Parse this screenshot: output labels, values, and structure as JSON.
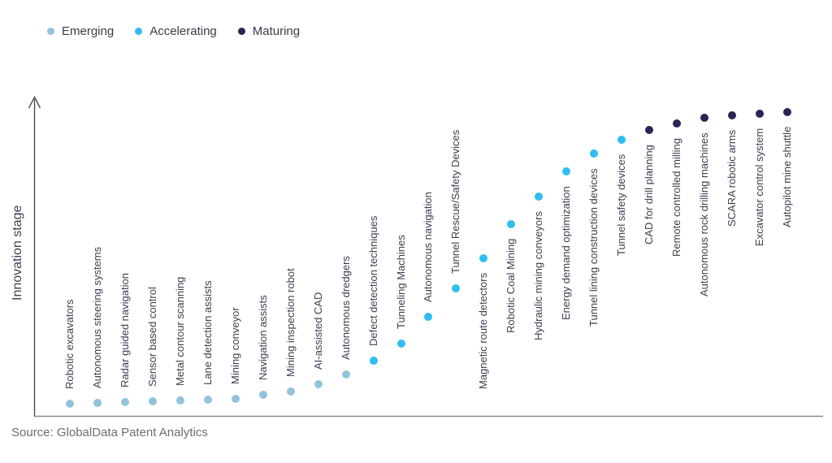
{
  "legend": {
    "items": [
      {
        "label": "Emerging",
        "color": "#92c3dc"
      },
      {
        "label": "Accelerating",
        "color": "#30bdf2"
      },
      {
        "label": "Maturing",
        "color": "#2e2153"
      }
    ]
  },
  "y_axis_label": "Innovation stage",
  "source_note": "Source: GlobalData Patent Analytics",
  "chart_data": {
    "type": "scatter",
    "title": "",
    "xlabel": "",
    "ylabel": "Innovation stage",
    "ylim": [
      0,
      1
    ],
    "grid": false,
    "legend_position": "top-left",
    "y_axis_style": "arrow-no-ticks",
    "x_axis_style": "plain-line-no-ticks",
    "stage_colors": {
      "Emerging": "#92c3dc",
      "Accelerating": "#30bdf2",
      "Maturing": "#2e2153"
    },
    "points": [
      {
        "label": "Robotic excavators",
        "stage": "Emerging",
        "y": 0.036,
        "label_position": "above"
      },
      {
        "label": "Autonomous steering systems",
        "stage": "Emerging",
        "y": 0.038,
        "label_position": "above"
      },
      {
        "label": "Radar guided navigation",
        "stage": "Emerging",
        "y": 0.041,
        "label_position": "above"
      },
      {
        "label": "Sensor based control",
        "stage": "Emerging",
        "y": 0.044,
        "label_position": "above"
      },
      {
        "label": "Metal contour scanning",
        "stage": "Emerging",
        "y": 0.046,
        "label_position": "above"
      },
      {
        "label": "Lane detection assists",
        "stage": "Emerging",
        "y": 0.049,
        "label_position": "above"
      },
      {
        "label": "Mining conveyor",
        "stage": "Emerging",
        "y": 0.051,
        "label_position": "above"
      },
      {
        "label": "Navigation assists",
        "stage": "Emerging",
        "y": 0.064,
        "label_position": "above"
      },
      {
        "label": "Mining inspection robot",
        "stage": "Emerging",
        "y": 0.074,
        "label_position": "above"
      },
      {
        "label": "AI-assisted CAD",
        "stage": "Emerging",
        "y": 0.097,
        "label_position": "above"
      },
      {
        "label": "Autonomous dredgers",
        "stage": "Emerging",
        "y": 0.128,
        "label_position": "above"
      },
      {
        "label": "Defect detection techniques",
        "stage": "Accelerating",
        "y": 0.171,
        "label_position": "above"
      },
      {
        "label": "Tunneling Machines",
        "stage": "Accelerating",
        "y": 0.225,
        "label_position": "above"
      },
      {
        "label": "Autonomous navigation",
        "stage": "Accelerating",
        "y": 0.309,
        "label_position": "above"
      },
      {
        "label": "Tunnel Rescue/Safety Devices",
        "stage": "Accelerating",
        "y": 0.398,
        "label_position": "above"
      },
      {
        "label": "Magnetic route detectors",
        "stage": "Accelerating",
        "y": 0.494,
        "label_position": "below"
      },
      {
        "label": "Robotic Coal Mining",
        "stage": "Accelerating",
        "y": 0.601,
        "label_position": "below"
      },
      {
        "label": "Hydraulic mining conveyors",
        "stage": "Accelerating",
        "y": 0.688,
        "label_position": "below"
      },
      {
        "label": "Energy demand optimization",
        "stage": "Accelerating",
        "y": 0.767,
        "label_position": "below"
      },
      {
        "label": "Tunnel lining construction devices",
        "stage": "Accelerating",
        "y": 0.824,
        "label_position": "below"
      },
      {
        "label": "Tunnel safety devices",
        "stage": "Accelerating",
        "y": 0.867,
        "label_position": "below"
      },
      {
        "label": "CAD for drill planning",
        "stage": "Maturing",
        "y": 0.898,
        "label_position": "below"
      },
      {
        "label": "Remote controlled milling",
        "stage": "Maturing",
        "y": 0.918,
        "label_position": "below"
      },
      {
        "label": "Autonomous rock drilling machines",
        "stage": "Maturing",
        "y": 0.936,
        "label_position": "below"
      },
      {
        "label": "SCARA robotic arms",
        "stage": "Maturing",
        "y": 0.944,
        "label_position": "below"
      },
      {
        "label": "Excavator control system",
        "stage": "Maturing",
        "y": 0.949,
        "label_position": "below"
      },
      {
        "label": "Autopilot mine shuttle",
        "stage": "Maturing",
        "y": 0.954,
        "label_position": "below"
      }
    ]
  }
}
